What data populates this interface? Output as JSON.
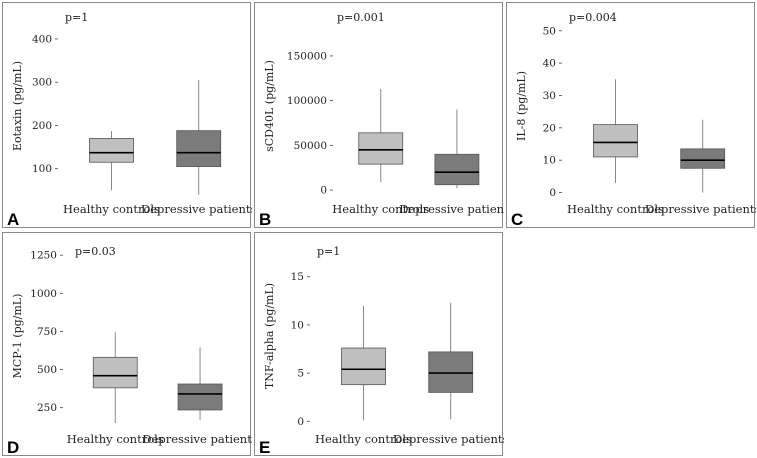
{
  "colors": {
    "healthy_fill": "#c0c0c0",
    "depressive_fill": "#7b7b7b",
    "border": "#555555",
    "whisker": "#888888",
    "median": "#000000"
  },
  "chart_data": [
    {
      "type": "box",
      "panel_label": "A",
      "p_value": "p=1",
      "ylabel": "Eotaxin (pg/mL)",
      "yticks": [
        100,
        200,
        300,
        400
      ],
      "ytick_labels": [
        "100",
        "200",
        "300",
        "400"
      ],
      "ylim": [
        30,
        460
      ],
      "categories": [
        "Healthy controls",
        "Depressive patients"
      ],
      "boxes": [
        {
          "name": "Healthy controls",
          "min": 50,
          "q1": 115,
          "median": 137,
          "q3": 170,
          "max": 187
        },
        {
          "name": "Depressive patients",
          "min": 40,
          "q1": 105,
          "median": 137,
          "q3": 188,
          "max": 305
        }
      ]
    },
    {
      "type": "box",
      "panel_label": "B",
      "p_value": "p=0.001",
      "ylabel": "sCD40L (pg/mL)",
      "yticks": [
        0,
        50000,
        100000,
        150000
      ],
      "ytick_labels": [
        "0",
        "50000",
        "100000",
        "150000"
      ],
      "ylim": [
        -10000,
        198000
      ],
      "categories": [
        "Healthy controls",
        "Depressive patients"
      ],
      "boxes": [
        {
          "name": "Healthy controls",
          "min": 9000,
          "q1": 29000,
          "median": 45000,
          "q3": 64000,
          "max": 113000
        },
        {
          "name": "Depressive patients",
          "min": 2000,
          "q1": 6000,
          "median": 20000,
          "q3": 40000,
          "max": 90000
        }
      ]
    },
    {
      "type": "box",
      "panel_label": "C",
      "p_value": "p=0.004",
      "ylabel": "IL-8 (pg/mL)",
      "yticks": [
        0,
        10,
        20,
        30,
        40,
        50
      ],
      "ytick_labels": [
        "0",
        "10",
        "20",
        "30",
        "40",
        "50"
      ],
      "ylim": [
        -2,
        55.5
      ],
      "categories": [
        "Healthy controls",
        "Depressive patients"
      ],
      "boxes": [
        {
          "name": "Healthy controls",
          "min": 3,
          "q1": 11,
          "median": 15.5,
          "q3": 21,
          "max": 35
        },
        {
          "name": "Depressive patients",
          "min": 0,
          "q1": 7.5,
          "median": 10,
          "q3": 13.5,
          "max": 22.5
        }
      ]
    },
    {
      "type": "box",
      "panel_label": "D",
      "p_value": "p=0.03",
      "ylabel": "MCP-1 (pg/mL)",
      "yticks": [
        250,
        500,
        750,
        1000,
        1250
      ],
      "ytick_labels": [
        "250",
        "500",
        "750",
        "1000",
        "1250"
      ],
      "ylim": [
        110,
        1330
      ],
      "categories": [
        "Healthy controls",
        "Depressive patients"
      ],
      "boxes": [
        {
          "name": "Healthy controls",
          "min": 150,
          "q1": 380,
          "median": 460,
          "q3": 580,
          "max": 745
        },
        {
          "name": "Depressive patients",
          "min": 170,
          "q1": 235,
          "median": 340,
          "q3": 405,
          "max": 645
        }
      ]
    },
    {
      "type": "box",
      "panel_label": "E",
      "p_value": "p=1",
      "ylabel": "TNF-alpha (pg/mL)",
      "yticks": [
        0,
        5,
        10,
        15
      ],
      "ytick_labels": [
        "0",
        "5",
        "10",
        "15"
      ],
      "ylim": [
        -0.8,
        18.5
      ],
      "categories": [
        "Healthy controls",
        "Depressive patients"
      ],
      "boxes": [
        {
          "name": "Healthy controls",
          "min": 0.1,
          "q1": 3.8,
          "median": 5.4,
          "q3": 7.6,
          "max": 12
        },
        {
          "name": "Depressive patients",
          "min": 0.2,
          "q1": 3.0,
          "median": 5.0,
          "q3": 7.2,
          "max": 12.3
        }
      ]
    }
  ]
}
